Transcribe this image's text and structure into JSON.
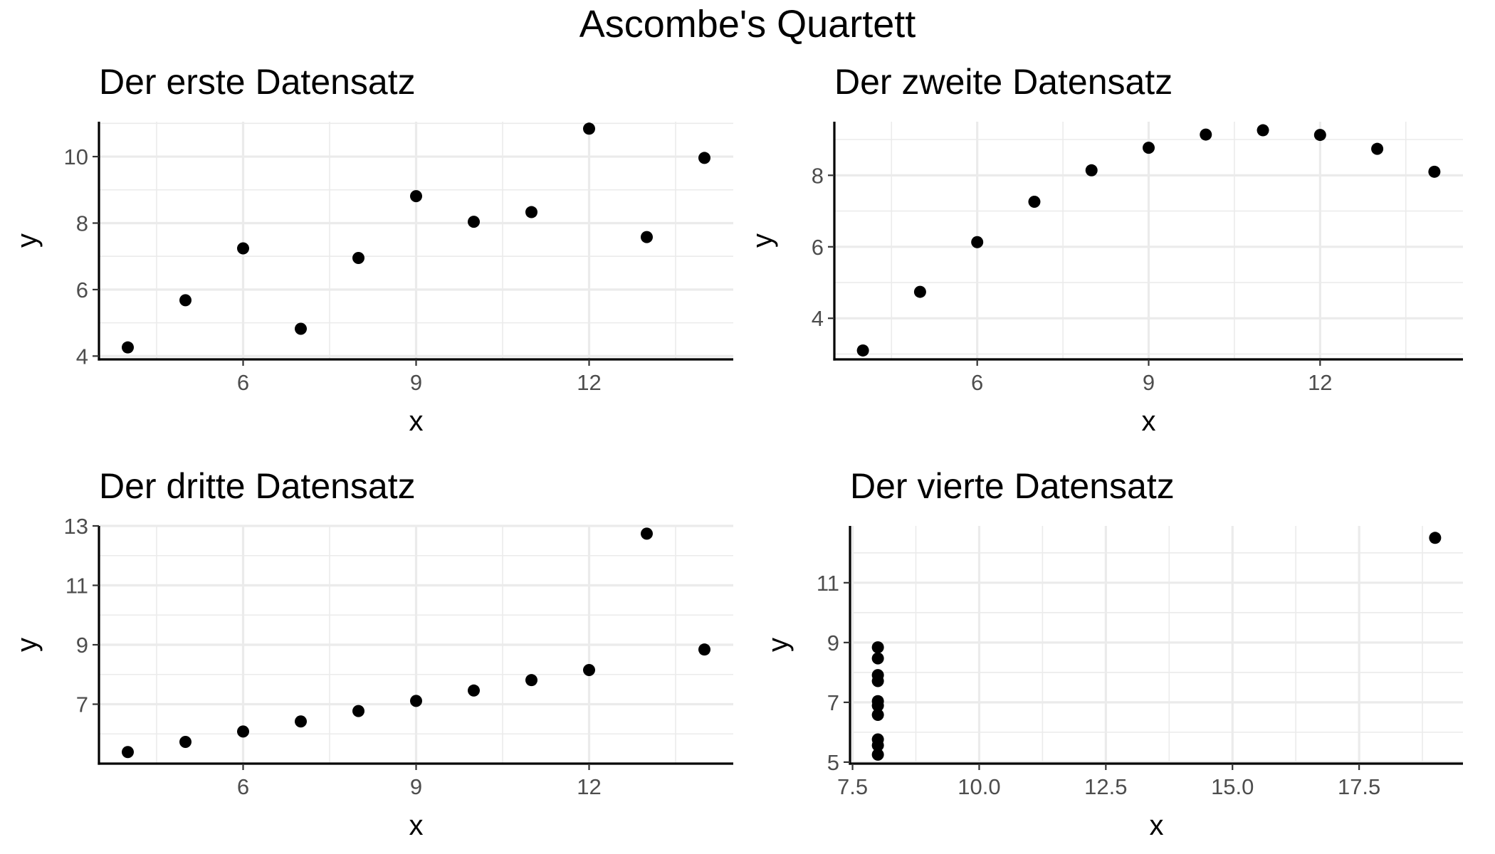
{
  "figure": {
    "title": "Ascombe's Quartett"
  },
  "chart_data": [
    {
      "type": "scatter",
      "title": "Der erste Datensatz",
      "xlabel": "x",
      "ylabel": "y",
      "xlim": [
        3.5,
        14.5
      ],
      "ylim": [
        3.9,
        11.05
      ],
      "x_ticks": [
        6,
        9,
        12
      ],
      "x_tick_labels": [
        "6",
        "9",
        "12"
      ],
      "y_ticks": [
        4,
        6,
        8,
        10
      ],
      "y_tick_labels": [
        "4",
        "6",
        "8",
        "10"
      ],
      "grid": true,
      "x": [
        10,
        8,
        13,
        9,
        11,
        14,
        6,
        4,
        12,
        7,
        5
      ],
      "y": [
        8.04,
        6.95,
        7.58,
        8.81,
        8.33,
        9.96,
        7.24,
        4.26,
        10.84,
        4.82,
        5.68
      ]
    },
    {
      "type": "scatter",
      "title": "Der zweite Datensatz",
      "xlabel": "x",
      "ylabel": "y",
      "xlim": [
        3.5,
        14.5
      ],
      "ylim": [
        2.85,
        9.5
      ],
      "x_ticks": [
        6,
        9,
        12
      ],
      "x_tick_labels": [
        "6",
        "9",
        "12"
      ],
      "y_ticks": [
        4,
        6,
        8
      ],
      "y_tick_labels": [
        "4",
        "6",
        "8"
      ],
      "grid": true,
      "x": [
        10,
        8,
        13,
        9,
        11,
        14,
        6,
        4,
        12,
        7,
        5
      ],
      "y": [
        9.14,
        8.14,
        8.74,
        8.77,
        9.26,
        8.1,
        6.13,
        3.1,
        9.13,
        7.26,
        4.74
      ]
    },
    {
      "type": "scatter",
      "title": "Der dritte Datensatz",
      "xlabel": "x",
      "ylabel": "y",
      "xlim": [
        3.5,
        14.5
      ],
      "ylim": [
        5.0,
        13.0
      ],
      "x_ticks": [
        6,
        9,
        12
      ],
      "x_tick_labels": [
        "6",
        "9",
        "12"
      ],
      "y_ticks": [
        7,
        9,
        11,
        13
      ],
      "y_tick_labels": [
        "7",
        "9",
        "11",
        "13"
      ],
      "grid": true,
      "x": [
        10,
        8,
        13,
        9,
        11,
        14,
        6,
        4,
        12,
        7,
        5
      ],
      "y": [
        7.46,
        6.77,
        12.74,
        7.11,
        7.81,
        8.84,
        6.08,
        5.39,
        8.15,
        6.42,
        5.73
      ]
    },
    {
      "type": "scatter",
      "title": "Der vierte Datensatz",
      "xlabel": "x",
      "ylabel": "y",
      "xlim": [
        7.45,
        19.55
      ],
      "ylim": [
        4.95,
        12.9
      ],
      "x_ticks": [
        7.5,
        10,
        12.5,
        15,
        17.5
      ],
      "x_tick_labels": [
        "7.5",
        "10.0",
        "12.5",
        "15.0",
        "17.5"
      ],
      "y_ticks": [
        5,
        7,
        9,
        11
      ],
      "y_tick_labels": [
        "5",
        "7",
        "9",
        "11"
      ],
      "grid": true,
      "x": [
        8,
        8,
        8,
        8,
        8,
        8,
        8,
        19,
        8,
        8,
        8
      ],
      "y": [
        6.58,
        5.76,
        7.71,
        8.84,
        8.47,
        7.04,
        5.25,
        12.5,
        5.56,
        7.91,
        6.89
      ]
    }
  ]
}
